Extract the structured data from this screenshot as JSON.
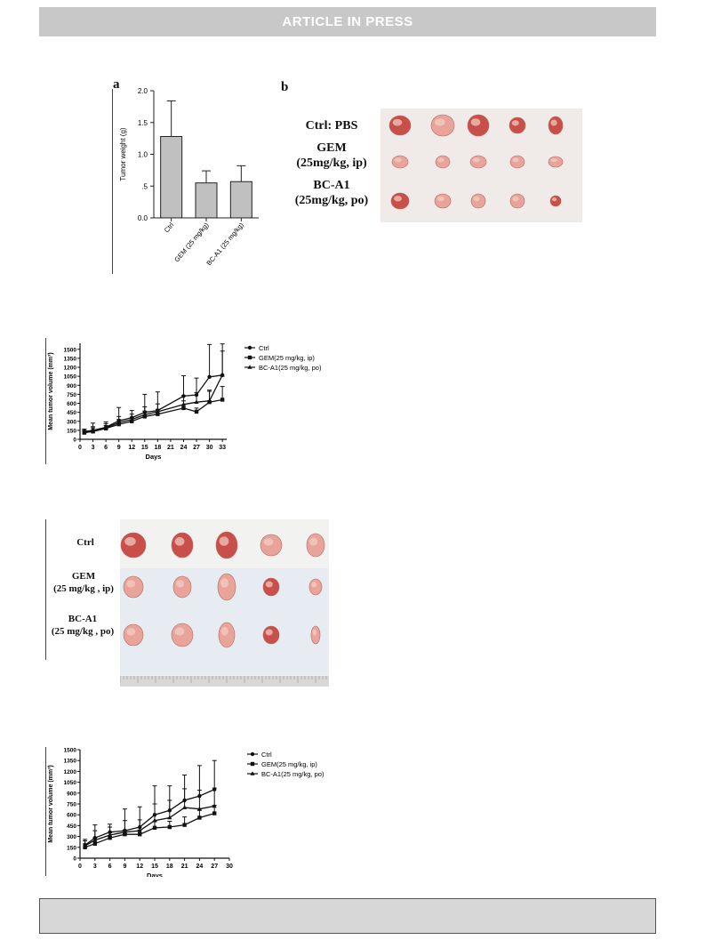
{
  "banner": {
    "text": "ARTICLE IN PRESS"
  },
  "panel_a": {
    "letter": "a"
  },
  "panel_b": {
    "letter": "b",
    "labels": [
      "Ctrl: PBS",
      "GEM\n(25mg/kg, ip)",
      "BC-A1\n(25mg/kg, po)"
    ]
  },
  "photo2": {
    "labels": [
      "Ctrl",
      "GEM\n(25 mg/kg , ip)",
      "BC-A1\n(25 mg/kg , po)"
    ]
  },
  "chart_data": [
    {
      "type": "bar",
      "categories": [
        "Ctrl",
        "GEM (25 mg/kg)",
        "BC-A1 (25 mg/kg)"
      ],
      "values": [
        1.28,
        0.55,
        0.57
      ],
      "errors": [
        0.56,
        0.19,
        0.25
      ],
      "ylabel": "Tumor weight (g)",
      "ylim": [
        0,
        2.0
      ],
      "yticks": [
        "0.0",
        ".5",
        "1.0",
        "1.5",
        "2.0"
      ],
      "color": "#c0c0c0"
    },
    {
      "type": "line",
      "xlabel": "Days",
      "ylabel": "Mean tumor volume (mm³)",
      "xlim": [
        0,
        34
      ],
      "ylim": [
        0,
        1600
      ],
      "xticks": [
        "0",
        "3",
        "6",
        "9",
        "12",
        "15",
        "18",
        "21",
        "24",
        "27",
        "30",
        "33"
      ],
      "yticks": [
        "0",
        "150",
        "300",
        "450",
        "600",
        "750",
        "900",
        "1050",
        "1200",
        "1350",
        "1500"
      ],
      "x": [
        1,
        3,
        6,
        9,
        12,
        15,
        18,
        24,
        27,
        30,
        33
      ],
      "legend": "top-right",
      "series": [
        {
          "name": "Ctrl",
          "marker": "circle",
          "values": [
            130,
            150,
            200,
            310,
            360,
            450,
            480,
            720,
            740,
            1040,
            1070
          ],
          "errors": [
            40,
            120,
            90,
            220,
            120,
            300,
            310,
            340,
            280,
            540,
            520
          ]
        },
        {
          "name": "GEM(25 mg/kg, ip)",
          "marker": "square",
          "values": [
            110,
            130,
            180,
            250,
            300,
            380,
            420,
            520,
            460,
            620,
            660
          ],
          "errors": [
            30,
            60,
            50,
            80,
            60,
            90,
            80,
            120,
            60,
            180,
            220
          ]
        },
        {
          "name": "BC-A1(25 mg/kg, po)",
          "marker": "triangle",
          "values": [
            120,
            140,
            190,
            280,
            330,
            410,
            460,
            580,
            620,
            640,
            1070
          ],
          "errors": [
            30,
            70,
            70,
            100,
            90,
            130,
            130,
            150,
            160,
            180,
            400
          ]
        }
      ]
    },
    {
      "type": "line",
      "xlabel": "Days",
      "ylabel": "Mean tumor volume (mm³)",
      "xlim": [
        0,
        30
      ],
      "ylim": [
        0,
        1500
      ],
      "xticks": [
        "0",
        "3",
        "6",
        "9",
        "12",
        "15",
        "18",
        "21",
        "24",
        "27",
        "30"
      ],
      "yticks": [
        "0",
        "150",
        "300",
        "450",
        "600",
        "750",
        "900",
        "1050",
        "1200",
        "1350",
        "1500"
      ],
      "x": [
        1,
        3,
        6,
        9,
        12,
        15,
        18,
        21,
        24,
        27
      ],
      "legend": "top-right",
      "series": [
        {
          "name": "Ctrl",
          "marker": "circle",
          "values": [
            180,
            280,
            360,
            380,
            430,
            600,
            660,
            800,
            860,
            950
          ],
          "errors": [
            80,
            180,
            110,
            300,
            280,
            400,
            340,
            350,
            420,
            400
          ]
        },
        {
          "name": "GEM(25 mg/kg, ip)",
          "marker": "square",
          "values": [
            150,
            200,
            280,
            330,
            330,
            420,
            430,
            460,
            560,
            620
          ],
          "errors": [
            50,
            80,
            70,
            60,
            60,
            90,
            80,
            110,
            100,
            110
          ]
        },
        {
          "name": "BC-A1(25 mg/kg, po)",
          "marker": "triangle",
          "values": [
            170,
            250,
            320,
            360,
            380,
            520,
            560,
            700,
            680,
            720
          ],
          "errors": [
            70,
            130,
            110,
            160,
            150,
            230,
            240,
            260,
            260,
            250
          ]
        }
      ]
    }
  ],
  "colors": {
    "banner_bg": "#c8c8c8",
    "footer_bg": "#d7d7d7",
    "photo_bg": "#f0ebe8",
    "tumor": "#e8a49a",
    "tumor_dark": "#c9504a"
  }
}
